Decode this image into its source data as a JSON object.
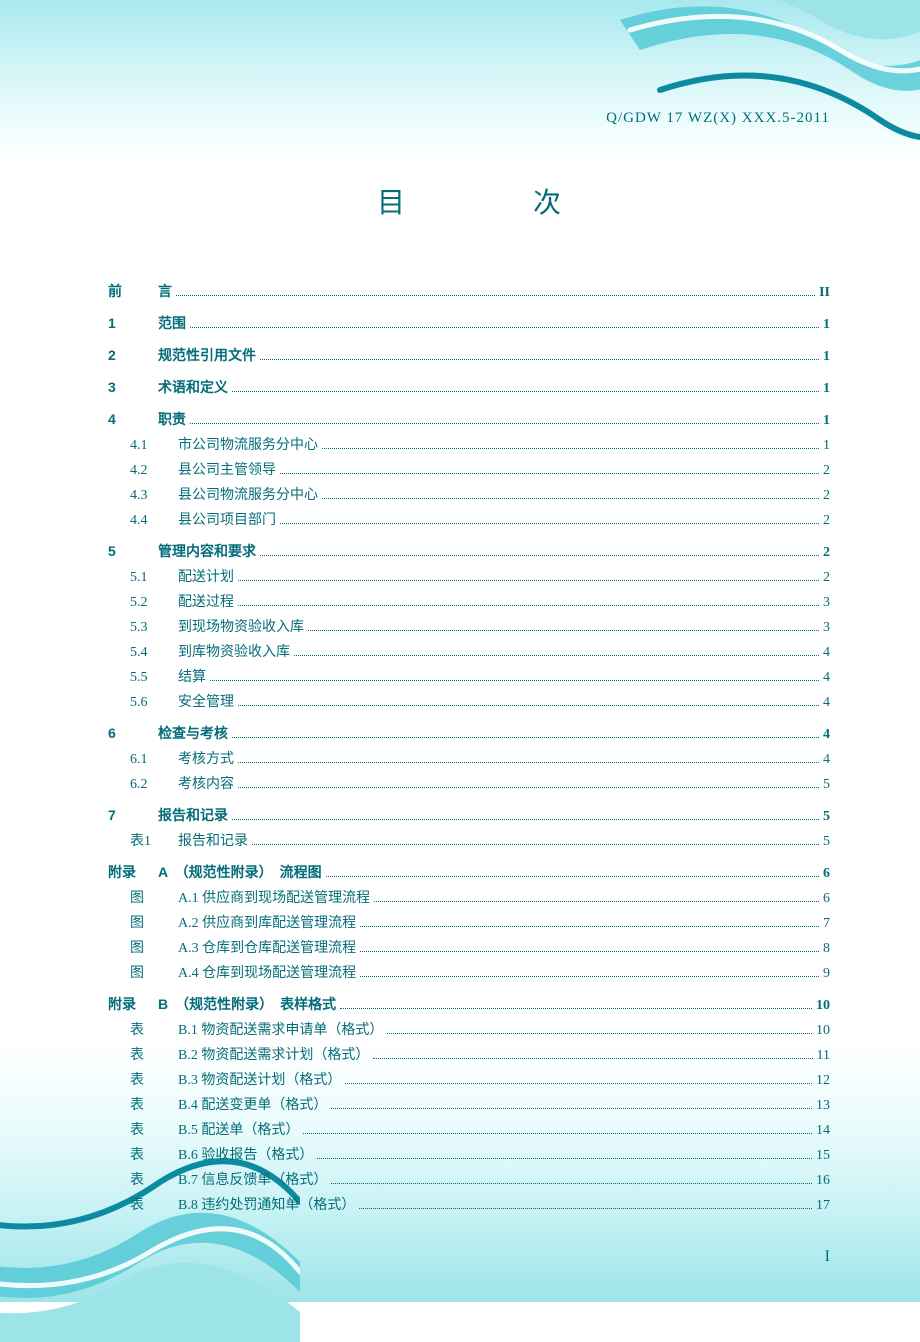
{
  "doc_code": "Q/GDW 17 WZ(X) XXX.5-2011",
  "title": "目　次",
  "page_num": "I",
  "colors": {
    "text": "#046d7a",
    "bg_cyan_light": "#d0f4f6",
    "bg_cyan_dark": "#50c8d4",
    "wave_stroke": "#0c8ba0",
    "wave_fill1": "#9de4e8",
    "wave_fill2": "#d0f4f6"
  },
  "toc": [
    {
      "type": "l1",
      "num": "前",
      "label": "言",
      "page": "II"
    },
    {
      "type": "l1",
      "num": "1",
      "label": "范围",
      "page": "1"
    },
    {
      "type": "l1",
      "num": "2",
      "label": "规范性引用文件",
      "page": "1"
    },
    {
      "type": "l1",
      "num": "3",
      "label": "术语和定义",
      "page": "1"
    },
    {
      "type": "l1",
      "num": "4",
      "label": "职责",
      "page": "1"
    },
    {
      "type": "l2",
      "num": "4.1",
      "label": "市公司物流服务分中心",
      "page": "1"
    },
    {
      "type": "l2",
      "num": "4.2",
      "label": "县公司主管领导",
      "page": "2"
    },
    {
      "type": "l2",
      "num": "4.3",
      "label": "县公司物流服务分中心",
      "page": "2"
    },
    {
      "type": "l2",
      "num": "4.4",
      "label": "县公司项目部门",
      "page": "2"
    },
    {
      "type": "l1",
      "num": "5",
      "label": "管理内容和要求",
      "page": "2"
    },
    {
      "type": "l2",
      "num": "5.1",
      "label": "配送计划",
      "page": "2"
    },
    {
      "type": "l2",
      "num": "5.2",
      "label": "配送过程",
      "page": "3"
    },
    {
      "type": "l2",
      "num": "5.3",
      "label": "到现场物资验收入库",
      "page": "3"
    },
    {
      "type": "l2",
      "num": "5.4",
      "label": "到库物资验收入库",
      "page": "4"
    },
    {
      "type": "l2",
      "num": "5.5",
      "label": "结算",
      "page": "4"
    },
    {
      "type": "l2",
      "num": "5.6",
      "label": "安全管理",
      "page": "4"
    },
    {
      "type": "l1",
      "num": "6",
      "label": "检查与考核",
      "page": "4"
    },
    {
      "type": "l2",
      "num": "6.1",
      "label": "考核方式",
      "page": "4"
    },
    {
      "type": "l2",
      "num": "6.2",
      "label": "考核内容",
      "page": "5"
    },
    {
      "type": "l1",
      "num": "7",
      "label": "报告和记录",
      "page": "5"
    },
    {
      "type": "l2",
      "num": "表1",
      "label": "报告和记录",
      "page": "5"
    },
    {
      "type": "appx",
      "num": "附录",
      "label": "A　（规范性附录）　流程图",
      "page": "6"
    },
    {
      "type": "l2",
      "num": "图",
      "label": "A.1 供应商到现场配送管理流程",
      "page": "6"
    },
    {
      "type": "l2",
      "num": "图",
      "label": "A.2 供应商到库配送管理流程",
      "page": "7"
    },
    {
      "type": "l2",
      "num": "图",
      "label": "A.3 仓库到仓库配送管理流程",
      "page": "8"
    },
    {
      "type": "l2",
      "num": "图",
      "label": "A.4 仓库到现场配送管理流程",
      "page": "9"
    },
    {
      "type": "appx",
      "num": "附录",
      "label": "B　（规范性附录）　表样格式",
      "page": "10"
    },
    {
      "type": "l2",
      "num": "表",
      "label": "B.1 物资配送需求申请单（格式）",
      "page": "10"
    },
    {
      "type": "l2",
      "num": "表",
      "label": "B.2 物资配送需求计划（格式）",
      "page": "11"
    },
    {
      "type": "l2",
      "num": "表",
      "label": "B.3 物资配送计划（格式）",
      "page": "12"
    },
    {
      "type": "l2",
      "num": "表",
      "label": "B.4 配送变更单（格式）",
      "page": "13"
    },
    {
      "type": "l2",
      "num": "表",
      "label": "B.5 配送单（格式）",
      "page": "14"
    },
    {
      "type": "l2",
      "num": "表",
      "label": "B.6 验收报告（格式）",
      "page": "15"
    },
    {
      "type": "l2",
      "num": "表",
      "label": "B.7 信息反馈单（格式）",
      "page": "16"
    },
    {
      "type": "l2",
      "num": "表",
      "label": "B.8 违约处罚通知单（格式）",
      "page": "17"
    }
  ]
}
